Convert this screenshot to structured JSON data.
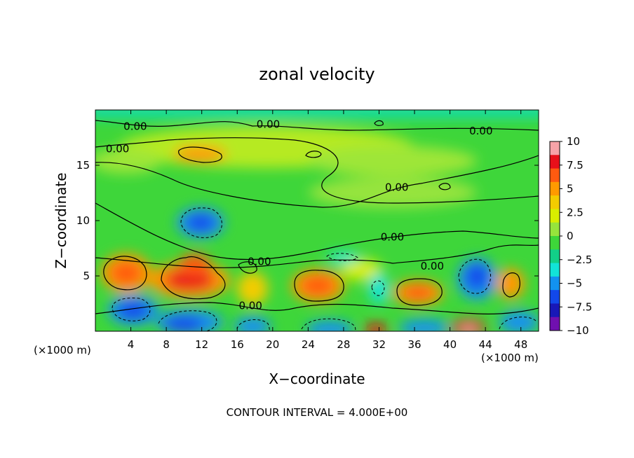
{
  "chart_data": {
    "type": "heatmap",
    "title": "zonal velocity",
    "xlabel": "X−coordinate",
    "ylabel": "Z−coordinate",
    "x_unit_left": "(×1000 m)",
    "x_unit_right": "(×1000 m)",
    "footer": "CONTOUR INTERVAL = 4.000E+00",
    "xlim": [
      0,
      50
    ],
    "ylim": [
      0,
      20
    ],
    "x_ticks": [
      4,
      8,
      12,
      16,
      20,
      24,
      28,
      32,
      36,
      40,
      44,
      48
    ],
    "x_tick_labels": [
      "4",
      "8",
      "12",
      "16",
      "20",
      "24",
      "28",
      "32",
      "36",
      "40",
      "44",
      "48"
    ],
    "y_ticks": [
      5,
      10,
      15
    ],
    "y_tick_labels": [
      "5",
      "10",
      "15"
    ],
    "contour_interval": 4.0,
    "contour_labels": [
      {
        "text": "0.00",
        "x": 4.5,
        "y": 18.5
      },
      {
        "text": "0.00",
        "x": 19.5,
        "y": 18.7
      },
      {
        "text": "0.00",
        "x": 43.5,
        "y": 18.1
      },
      {
        "text": "0.00",
        "x": 2.5,
        "y": 16.5
      },
      {
        "text": "0.00",
        "x": 34,
        "y": 13.0
      },
      {
        "text": "0.00",
        "x": 33.5,
        "y": 8.5
      },
      {
        "text": "0.00",
        "x": 18.5,
        "y": 6.3
      },
      {
        "text": "0.00",
        "x": 38,
        "y": 5.9
      },
      {
        "text": "0.00",
        "x": 17.5,
        "y": 2.3
      }
    ],
    "colorbar": {
      "min": -10,
      "max": 10,
      "tick_values": [
        10,
        7.5,
        5,
        2.5,
        0,
        -2.5,
        -5,
        -7.5,
        -10
      ],
      "tick_labels": [
        "10",
        "7.5",
        "5",
        "2.5",
        "0",
        "−2.5",
        "−5",
        "−7.5",
        "−10"
      ],
      "colors": [
        "#f7a3a8",
        "#e8101a",
        "#ff5a10",
        "#ff9a00",
        "#f3cc00",
        "#d8ee00",
        "#96e43c",
        "#3ed63a",
        "#12d088",
        "#12e4d8",
        "#1292f0",
        "#1248ea",
        "#1818b8",
        "#7010b0"
      ]
    },
    "features": [
      {
        "kind": "max",
        "x": 4,
        "y": 5.5,
        "peak": 6.5
      },
      {
        "kind": "max",
        "x": 10.5,
        "y": 4.3,
        "peak": 7.0
      },
      {
        "kind": "max",
        "x": 18,
        "y": 3.8,
        "peak": 4.0
      },
      {
        "kind": "max",
        "x": 25,
        "y": 4.0,
        "peak": 6.0
      },
      {
        "kind": "max",
        "x": 35.5,
        "y": 3.5,
        "peak": 5.5
      },
      {
        "kind": "max",
        "x": 46,
        "y": 4.5,
        "peak": 5.0
      },
      {
        "kind": "max",
        "x": 11.8,
        "y": 16.3,
        "peak": 4.5
      },
      {
        "kind": "max",
        "x": 31.5,
        "y": 0.4,
        "peak": 7.0
      },
      {
        "kind": "max",
        "x": 42.5,
        "y": 0.5,
        "peak": 10.0
      },
      {
        "kind": "min",
        "x": 12.2,
        "y": 9.8,
        "peak": -5.5
      },
      {
        "kind": "min",
        "x": 4,
        "y": 2.0,
        "peak": -7.0
      },
      {
        "kind": "min",
        "x": 11,
        "y": 1.2,
        "peak": -7.0
      },
      {
        "kind": "min",
        "x": 20,
        "y": 1.0,
        "peak": -6.5
      },
      {
        "kind": "min",
        "x": 43.2,
        "y": 5.0,
        "peak": -6.5
      },
      {
        "kind": "min",
        "x": 47,
        "y": 1.2,
        "peak": -5.5
      },
      {
        "kind": "min",
        "x": 30.5,
        "y": 4.0,
        "peak": -4.0
      },
      {
        "kind": "min",
        "x": 37,
        "y": 0.7,
        "peak": -7.0
      }
    ]
  }
}
